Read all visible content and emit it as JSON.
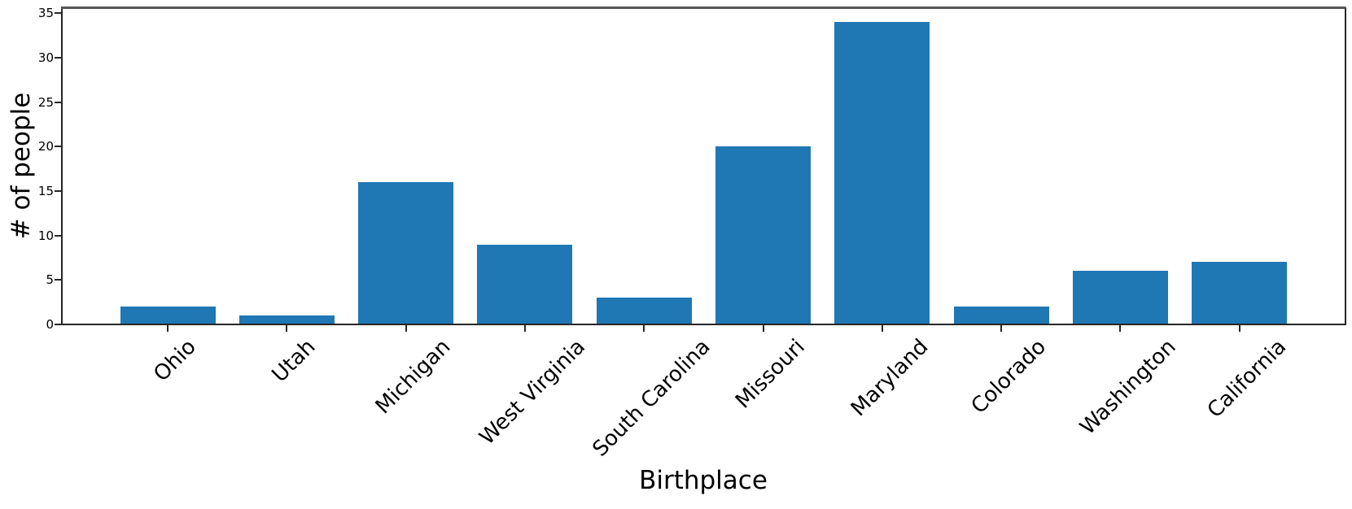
{
  "chart_data": {
    "type": "bar",
    "title": "",
    "xlabel": "Birthplace",
    "ylabel": "# of people",
    "categories": [
      "Ohio",
      "Utah",
      "Michigan",
      "West Virginia",
      "South Carolina",
      "Missouri",
      "Maryland",
      "Colorado",
      "Washington",
      "California"
    ],
    "values": [
      2,
      1,
      16,
      9,
      3,
      20,
      34,
      2,
      6,
      7
    ],
    "yticks": [
      0,
      5,
      10,
      15,
      20,
      25,
      30,
      35
    ],
    "ylim": [
      0,
      35.65
    ],
    "xtick_rotation_deg": 45,
    "grid": false,
    "legend_position": "none",
    "bar_color": "#1f77b4",
    "axis_color": "#262626",
    "top_spine_color": "#555555",
    "text_color": "#000000",
    "background_color": "#ffffff"
  }
}
